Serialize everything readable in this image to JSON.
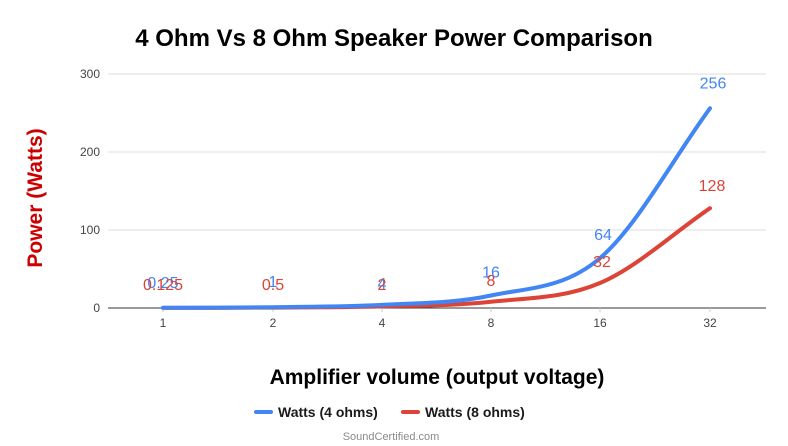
{
  "chart_data": {
    "type": "line",
    "title": "4 Ohm Vs 8 Ohm Speaker Power Comparison",
    "xlabel": "Amplifier volume (output voltage)",
    "ylabel": "Power (Watts)",
    "categories": [
      "1",
      "2",
      "4",
      "8",
      "16",
      "32"
    ],
    "ylim": [
      0,
      300
    ],
    "yticks": [
      0,
      100,
      200,
      300
    ],
    "grid": true,
    "legend_position": "bottom",
    "series": [
      {
        "name": "Watts (4 ohms)",
        "color": "#4285f4",
        "values": [
          0.25,
          1,
          4,
          16,
          64,
          256
        ],
        "labels": [
          "0.25",
          "1",
          "4",
          "16",
          "64",
          "256"
        ]
      },
      {
        "name": "Watts (8 ohms)",
        "color": "#db4437",
        "values": [
          0.125,
          0.5,
          2,
          8,
          32,
          128
        ],
        "labels": [
          "0.125",
          "0.5",
          "2",
          "8",
          "32",
          "128"
        ]
      }
    ]
  },
  "watermark": "SoundCertified.com"
}
